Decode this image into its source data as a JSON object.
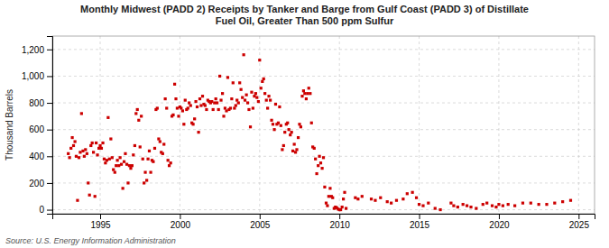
{
  "chart_data": {
    "type": "scatter",
    "title": "Monthly Midwest (PADD 2) Receipts by Tanker and Barge from Gulf Coast (PADD 3) of Distillate\nFuel Oil, Greater Than 500 ppm Sulfur",
    "ylabel": "Thousand Barrels",
    "source": "Source: U.S. Energy Information Administration",
    "color": "#cc0000",
    "marker": "square",
    "grid": true,
    "xlim": [
      1992.0,
      2026.0
    ],
    "ylim": [
      -30,
      1300
    ],
    "xticks": [
      1995,
      2000,
      2005,
      2010,
      2015,
      2020,
      2025
    ],
    "yticks": [
      0,
      200,
      400,
      600,
      800,
      {
        "value": 1000,
        "label": "1,000"
      },
      {
        "value": 1200,
        "label": "1,200"
      }
    ],
    "x": [
      1993.0,
      1993.08,
      1993.17,
      1993.25,
      1993.33,
      1993.42,
      1993.5,
      1993.58,
      1993.67,
      1993.75,
      1993.83,
      1993.92,
      1994.0,
      1994.08,
      1994.17,
      1994.25,
      1994.33,
      1994.42,
      1994.5,
      1994.58,
      1994.67,
      1994.75,
      1994.83,
      1994.92,
      1995.0,
      1995.08,
      1995.17,
      1995.25,
      1995.33,
      1995.42,
      1995.5,
      1995.58,
      1995.67,
      1995.75,
      1995.83,
      1995.92,
      1996.0,
      1996.08,
      1996.17,
      1996.25,
      1996.33,
      1996.42,
      1996.5,
      1996.58,
      1996.67,
      1996.75,
      1996.83,
      1996.92,
      1997.0,
      1997.08,
      1997.17,
      1997.25,
      1997.33,
      1997.42,
      1997.5,
      1997.58,
      1997.67,
      1997.75,
      1997.83,
      1997.92,
      1998.0,
      1998.08,
      1998.17,
      1998.25,
      1998.33,
      1998.42,
      1998.5,
      1998.58,
      1998.67,
      1998.75,
      1998.83,
      1998.92,
      1999.0,
      1999.08,
      1999.17,
      1999.25,
      1999.33,
      1999.42,
      1999.5,
      1999.58,
      1999.67,
      1999.75,
      1999.83,
      1999.92,
      2000.0,
      2000.08,
      2000.17,
      2000.25,
      2000.33,
      2000.42,
      2000.5,
      2000.58,
      2000.67,
      2000.75,
      2000.83,
      2000.92,
      2001.0,
      2001.08,
      2001.17,
      2001.25,
      2001.33,
      2001.42,
      2001.5,
      2001.58,
      2001.67,
      2001.75,
      2001.83,
      2001.92,
      2002.0,
      2002.08,
      2002.17,
      2002.25,
      2002.33,
      2002.42,
      2002.5,
      2002.58,
      2002.67,
      2002.75,
      2002.83,
      2002.92,
      2003.0,
      2003.08,
      2003.17,
      2003.25,
      2003.33,
      2003.42,
      2003.5,
      2003.58,
      2003.67,
      2003.75,
      2003.83,
      2003.92,
      2004.0,
      2004.08,
      2004.17,
      2004.25,
      2004.33,
      2004.42,
      2004.5,
      2004.58,
      2004.67,
      2004.75,
      2004.83,
      2004.92,
      2005.0,
      2005.08,
      2005.17,
      2005.25,
      2005.33,
      2005.42,
      2005.5,
      2005.58,
      2005.67,
      2005.75,
      2005.83,
      2005.92,
      2006.0,
      2006.08,
      2006.17,
      2006.25,
      2006.33,
      2006.42,
      2006.5,
      2006.58,
      2006.67,
      2006.75,
      2006.83,
      2006.92,
      2007.0,
      2007.08,
      2007.17,
      2007.25,
      2007.33,
      2007.42,
      2007.5,
      2007.58,
      2007.67,
      2007.75,
      2007.83,
      2007.92,
      2008.0,
      2008.08,
      2008.17,
      2008.25,
      2008.33,
      2008.42,
      2008.5,
      2008.58,
      2008.67,
      2008.75,
      2008.83,
      2008.92,
      2009.0,
      2009.08,
      2009.17,
      2009.25,
      2009.33,
      2009.42,
      2009.5,
      2009.58,
      2009.67,
      2009.75,
      2009.83,
      2009.92,
      2010.0,
      2010.08,
      2010.17,
      2010.25,
      2010.33,
      2010.42,
      2011.0,
      2011.17,
      2011.42,
      2012.0,
      2012.25,
      2012.58,
      2013.0,
      2013.25,
      2013.58,
      2014.0,
      2014.25,
      2014.58,
      2014.83,
      2015.0,
      2015.25,
      2015.58,
      2016.0,
      2016.33,
      2017.0,
      2017.17,
      2017.42,
      2017.75,
      2018.0,
      2018.25,
      2018.58,
      2019.0,
      2019.25,
      2019.58,
      2019.83,
      2020.0,
      2020.25,
      2020.58,
      2021.0,
      2021.5,
      2022.0,
      2022.5,
      2023.0,
      2023.5,
      2024.0,
      2024.5
    ],
    "values": [
      420,
      390,
      460,
      540,
      480,
      510,
      400,
      70,
      390,
      430,
      720,
      440,
      400,
      450,
      420,
      200,
      110,
      480,
      500,
      430,
      100,
      500,
      410,
      460,
      480,
      460,
      500,
      380,
      350,
      370,
      690,
      380,
      530,
      390,
      300,
      280,
      330,
      370,
      330,
      390,
      340,
      160,
      360,
      420,
      340,
      200,
      330,
      310,
      330,
      410,
      480,
      720,
      750,
      670,
      470,
      700,
      380,
      200,
      280,
      220,
      380,
      440,
      280,
      370,
      360,
      460,
      750,
      760,
      530,
      510,
      430,
      420,
      490,
      830,
      760,
      370,
      330,
      350,
      700,
      710,
      940,
      830,
      760,
      700,
      770,
      760,
      740,
      640,
      820,
      750,
      760,
      800,
      780,
      650,
      640,
      680,
      810,
      770,
      580,
      830,
      780,
      850,
      790,
      780,
      750,
      820,
      810,
      800,
      810,
      750,
      800,
      830,
      800,
      750,
      1000,
      820,
      870,
      700,
      760,
      740,
      990,
      750,
      760,
      830,
      950,
      760,
      780,
      820,
      800,
      950,
      900,
      840,
      1160,
      820,
      860,
      800,
      750,
      620,
      880,
      760,
      850,
      870,
      840,
      810,
      1120,
      910,
      960,
      980,
      870,
      820,
      760,
      850,
      820,
      670,
      640,
      600,
      790,
      640,
      650,
      770,
      630,
      450,
      480,
      580,
      640,
      650,
      600,
      560,
      580,
      440,
      490,
      430,
      450,
      540,
      640,
      620,
      850,
      890,
      870,
      830,
      870,
      910,
      870,
      650,
      470,
      460,
      380,
      270,
      330,
      400,
      350,
      310,
      390,
      170,
      50,
      30,
      100,
      160,
      100,
      90,
      10,
      20,
      15,
      5,
      0,
      0,
      20,
      80,
      130,
      10,
      90,
      80,
      100,
      80,
      70,
      90,
      60,
      50,
      70,
      80,
      120,
      130,
      90,
      40,
      30,
      50,
      10,
      0,
      50,
      30,
      20,
      40,
      30,
      20,
      10,
      40,
      50,
      30,
      20,
      40,
      30,
      40,
      30,
      50,
      50,
      40,
      40,
      50,
      60,
      70
    ]
  }
}
